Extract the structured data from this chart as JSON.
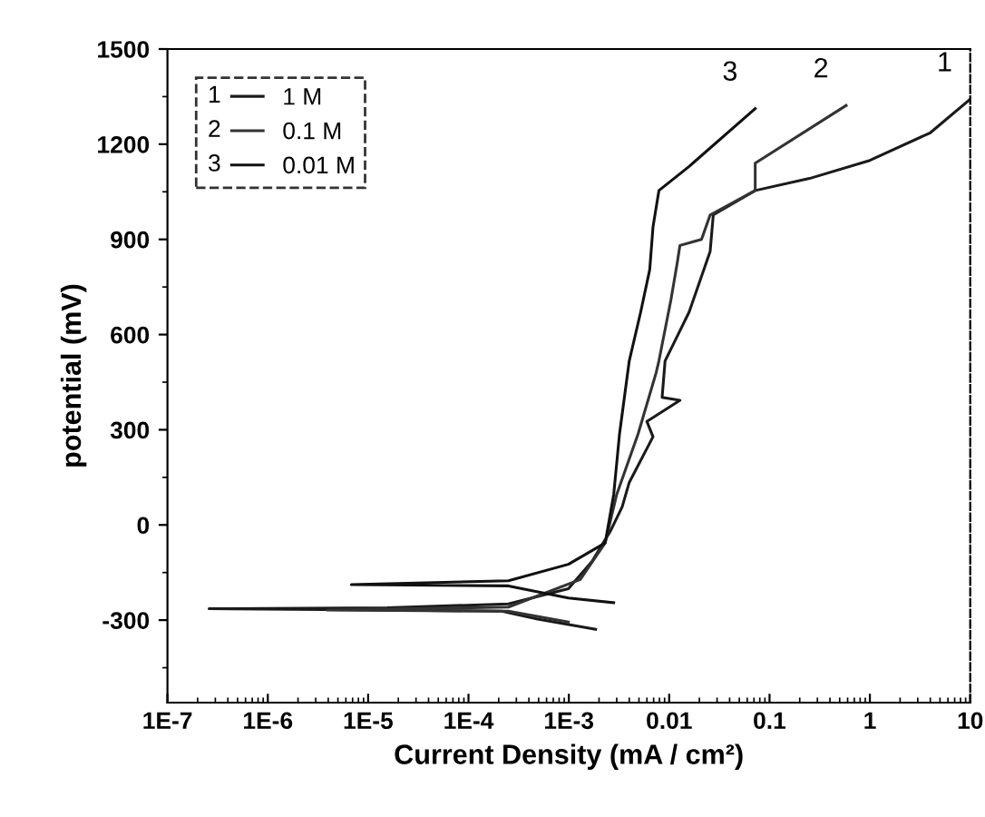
{
  "chart_data": {
    "type": "line",
    "xlabel": "Current Density (mA / cm²)",
    "ylabel": "potential (mV)",
    "log": "x",
    "xlim": [
      1e-07,
      10
    ],
    "xticks": [
      {
        "value": 1e-07,
        "label": "1E-7"
      },
      {
        "value": 1e-06,
        "label": "1E-6"
      },
      {
        "value": 1e-05,
        "label": "1E-5"
      },
      {
        "value": 0.0001,
        "label": "1E-4"
      },
      {
        "value": 0.001,
        "label": "1E-3"
      },
      0.01,
      0.1,
      1,
      10
    ],
    "ylim": [
      -560,
      1500
    ],
    "yticks": [
      -300,
      0,
      300,
      600,
      900,
      1200,
      1500
    ],
    "grid": false,
    "legend": "top left",
    "line_style": "solid",
    "marker": "none",
    "series": [
      {
        "name": "1 M",
        "color": "#1a1a1a",
        "x": [
          0.00185,
          0.00049,
          0.000215,
          1.55e-05,
          2.6e-07,
          1.55e-05,
          0.00025,
          0.00099,
          0.0017,
          0.0026,
          0.0034,
          0.004,
          0.0069,
          0.006,
          0.0128,
          0.0085,
          0.0091,
          0.012,
          0.0158,
          0.0256,
          0.0275,
          0.072,
          0.25,
          1.0,
          4.0,
          9.9
        ],
        "values": [
          -329,
          -297,
          -272,
          -268,
          -264,
          -261,
          -249,
          -201,
          -115,
          -19,
          57,
          134,
          278,
          326,
          393,
          402,
          517,
          594,
          671,
          862,
          977,
          1054,
          1092,
          1149,
          1236,
          1341
        ]
      },
      {
        "name": "0.1 M",
        "color": "#333333",
        "x": [
          0.00099,
          0.00025,
          3.9e-06,
          0.00025,
          0.0013,
          0.0023,
          0.003,
          0.0049,
          0.0074,
          0.0079,
          0.0104,
          0.012,
          0.0128,
          0.021,
          0.0256,
          0.072,
          0.072,
          0.58
        ],
        "values": [
          -306,
          -272,
          -268,
          -259,
          -172,
          -57,
          96,
          287,
          479,
          517,
          709,
          824,
          881,
          900,
          977,
          1054,
          1140,
          1322
        ]
      },
      {
        "name": "0.01 M",
        "color": "#111111",
        "x": [
          0.0028,
          0.00099,
          0.00025,
          6.8e-06,
          0.00025,
          0.00099,
          0.0023,
          0.0028,
          0.0032,
          0.004,
          0.0052,
          0.0064,
          0.0069,
          0.0079,
          0.0158,
          0.072
        ],
        "values": [
          -245,
          -230,
          -192,
          -188,
          -176,
          -124,
          -57,
          96,
          287,
          517,
          671,
          805,
          939,
          1054,
          1130,
          1312
        ]
      }
    ],
    "annotations": [
      {
        "text": "1",
        "x": 9.9,
        "y": 1341
      },
      {
        "text": "2",
        "x": 0.58,
        "y": 1322
      },
      {
        "text": "3",
        "x": 0.072,
        "y": 1312
      }
    ]
  }
}
